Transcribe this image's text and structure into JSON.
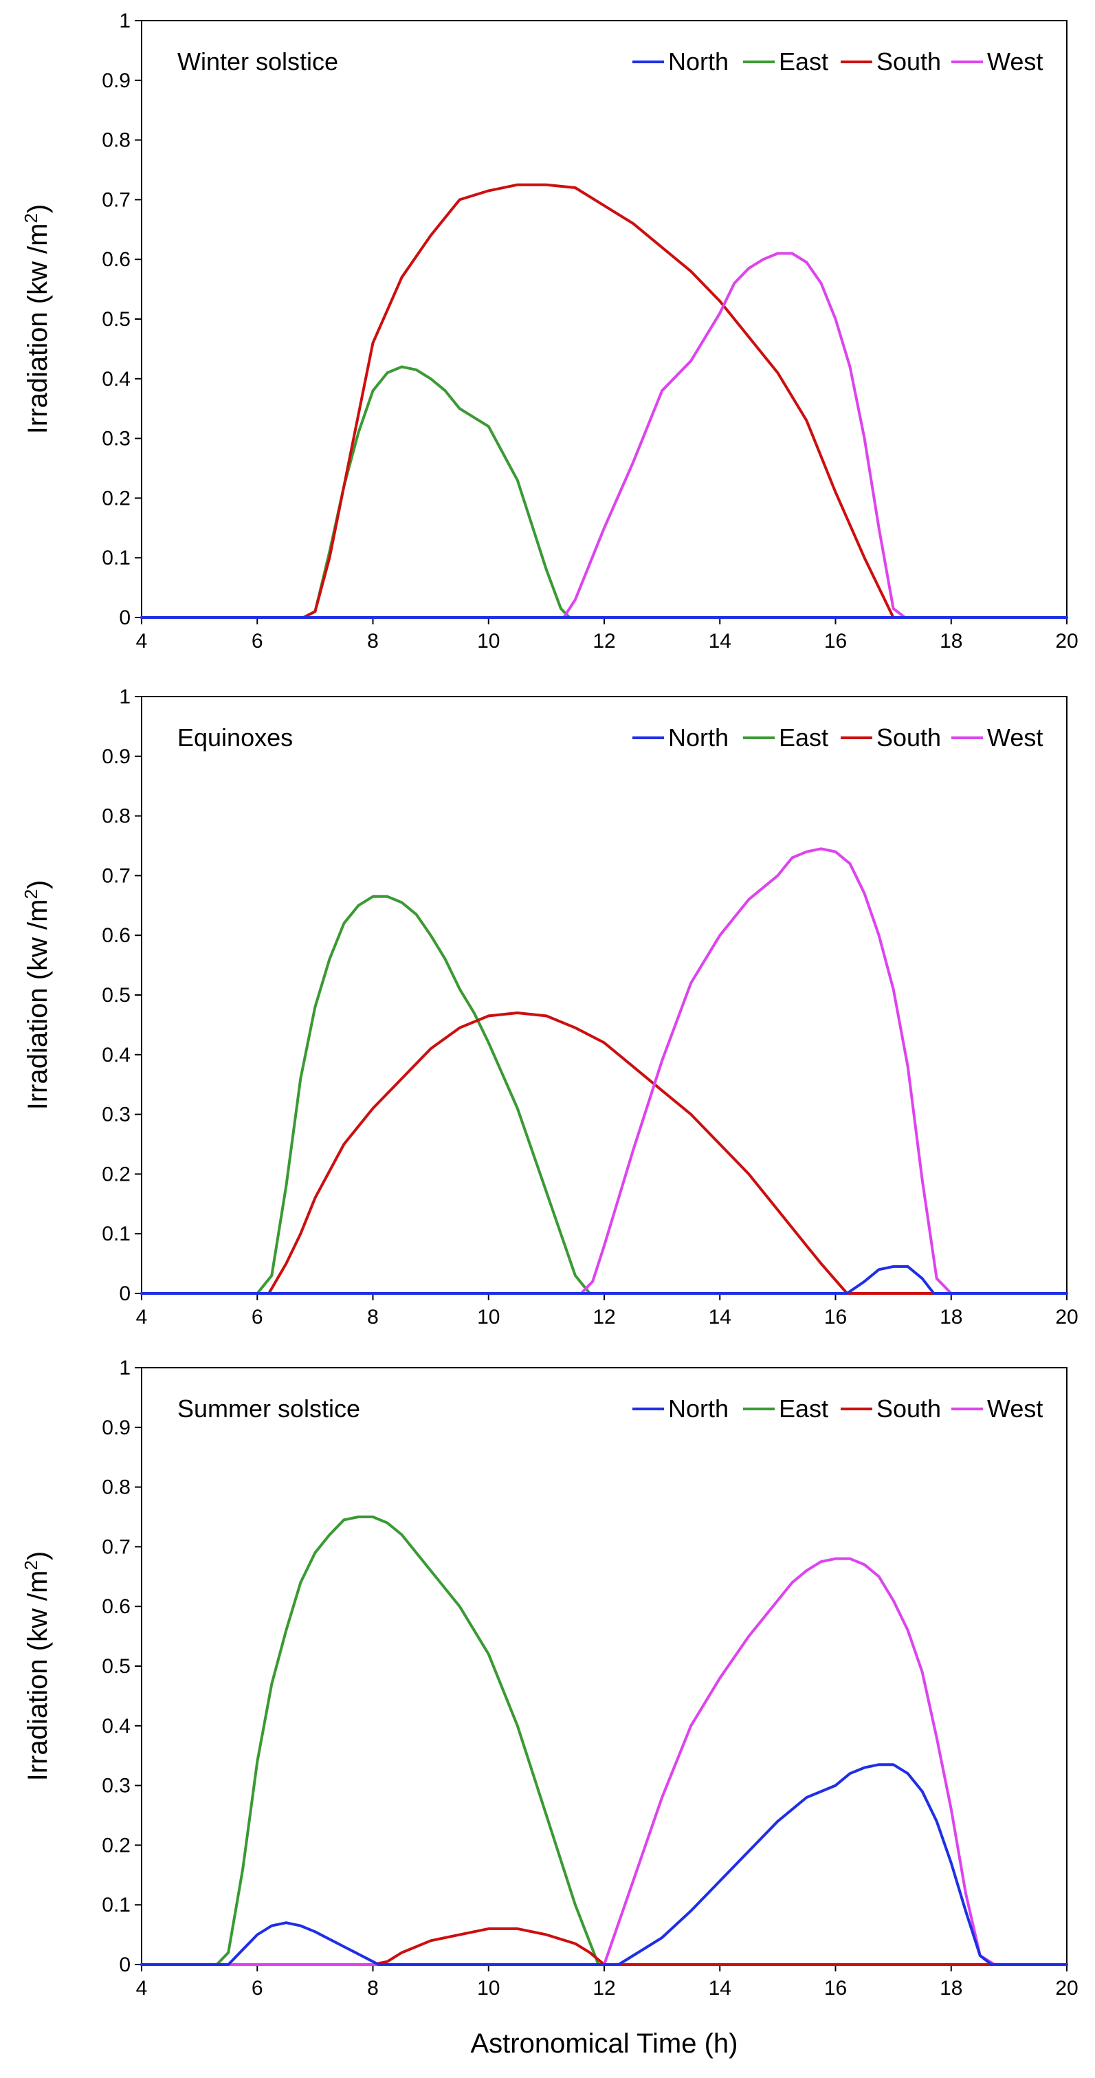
{
  "colors": {
    "North": "#1f2fe6",
    "East": "#3a9a33",
    "South": "#cc0f0f",
    "West": "#dd44ee",
    "axis": "#000000"
  },
  "shared": {
    "xlabel": "Astronomical Time (h)",
    "ylabel_main": "Irradiation (kw /m",
    "ylabel_sup": "2",
    "ylabel_close": ")"
  },
  "chart_data": [
    {
      "type": "line",
      "title": "Winter solstice",
      "xlabel": "Astronomical Time (h)",
      "ylabel": "Irradiation (kw /m2)",
      "xlim": [
        4,
        20
      ],
      "ylim": [
        0,
        1
      ],
      "xticks": [
        "4",
        "6",
        "8",
        "10",
        "12",
        "14",
        "16",
        "18",
        "20"
      ],
      "yticks": [
        "0",
        "0.1",
        "0.2",
        "0.3",
        "0.4",
        "0.5",
        "0.6",
        "0.7",
        "0.8",
        "0.9",
        "1"
      ],
      "legend": [
        "North",
        "East",
        "South",
        "West"
      ],
      "legend_position": "top-right",
      "series": [
        {
          "name": "North",
          "x": [
            4,
            20
          ],
          "y": [
            0,
            0
          ]
        },
        {
          "name": "East",
          "x": [
            4,
            6.8,
            7.0,
            7.25,
            7.5,
            7.75,
            8.0,
            8.25,
            8.5,
            8.75,
            9.0,
            9.25,
            9.5,
            10.0,
            10.5,
            11.0,
            11.25,
            11.4,
            20
          ],
          "y": [
            0,
            0,
            0.01,
            0.11,
            0.22,
            0.31,
            0.38,
            0.41,
            0.42,
            0.415,
            0.4,
            0.38,
            0.35,
            0.32,
            0.23,
            0.08,
            0.015,
            0,
            0
          ]
        },
        {
          "name": "South",
          "x": [
            4,
            6.8,
            7.0,
            7.25,
            7.5,
            8.0,
            8.5,
            9.0,
            9.5,
            10.0,
            10.5,
            11.0,
            11.5,
            12.0,
            12.5,
            13.0,
            13.5,
            14.0,
            14.5,
            15.0,
            15.5,
            16.0,
            16.5,
            16.8,
            17.0,
            20
          ],
          "y": [
            0,
            0,
            0.01,
            0.1,
            0.22,
            0.46,
            0.57,
            0.64,
            0.7,
            0.715,
            0.725,
            0.725,
            0.72,
            0.69,
            0.66,
            0.62,
            0.58,
            0.53,
            0.47,
            0.41,
            0.33,
            0.21,
            0.1,
            0.04,
            0,
            0
          ]
        },
        {
          "name": "West",
          "x": [
            4,
            11.3,
            11.5,
            12.0,
            12.5,
            13.0,
            13.5,
            14.0,
            14.25,
            14.5,
            14.75,
            15.0,
            15.25,
            15.5,
            15.75,
            16.0,
            16.25,
            16.5,
            16.75,
            17.0,
            17.2,
            20
          ],
          "y": [
            0,
            0,
            0.03,
            0.15,
            0.26,
            0.38,
            0.43,
            0.51,
            0.56,
            0.585,
            0.6,
            0.61,
            0.61,
            0.595,
            0.56,
            0.5,
            0.42,
            0.3,
            0.15,
            0.015,
            0,
            0
          ]
        }
      ]
    },
    {
      "type": "line",
      "title": "Equinoxes",
      "xlabel": "Astronomical Time (h)",
      "ylabel": "Irradiation (kw /m2)",
      "xlim": [
        4,
        20
      ],
      "ylim": [
        0,
        1
      ],
      "xticks": [
        "4",
        "6",
        "8",
        "10",
        "12",
        "14",
        "16",
        "18",
        "20"
      ],
      "yticks": [
        "0",
        "0.1",
        "0.2",
        "0.3",
        "0.4",
        "0.5",
        "0.6",
        "0.7",
        "0.8",
        "0.9",
        "1"
      ],
      "legend": [
        "North",
        "East",
        "South",
        "West"
      ],
      "legend_position": "top-right",
      "series": [
        {
          "name": "North",
          "x": [
            4,
            16.2,
            16.5,
            16.75,
            17.0,
            17.25,
            17.5,
            17.7,
            20
          ],
          "y": [
            0,
            0,
            0.02,
            0.04,
            0.045,
            0.045,
            0.025,
            0,
            0
          ]
        },
        {
          "name": "East",
          "x": [
            4,
            6.0,
            6.25,
            6.5,
            6.75,
            7.0,
            7.25,
            7.5,
            7.75,
            8.0,
            8.25,
            8.5,
            8.75,
            9.0,
            9.25,
            9.5,
            9.75,
            10.0,
            10.5,
            11.0,
            11.5,
            11.75,
            20
          ],
          "y": [
            0,
            0,
            0.03,
            0.18,
            0.36,
            0.48,
            0.56,
            0.62,
            0.65,
            0.665,
            0.665,
            0.655,
            0.635,
            0.6,
            0.56,
            0.51,
            0.47,
            0.42,
            0.31,
            0.17,
            0.03,
            0,
            0
          ]
        },
        {
          "name": "South",
          "x": [
            4,
            6.2,
            6.5,
            6.75,
            7.0,
            7.5,
            8.0,
            8.5,
            9.0,
            9.5,
            10.0,
            10.5,
            11.0,
            11.5,
            12.0,
            12.5,
            13.0,
            13.5,
            14.0,
            14.5,
            15.0,
            15.5,
            15.75,
            16.2,
            20
          ],
          "y": [
            0,
            0,
            0.05,
            0.1,
            0.16,
            0.25,
            0.31,
            0.36,
            0.41,
            0.445,
            0.465,
            0.47,
            0.465,
            0.445,
            0.42,
            0.38,
            0.34,
            0.3,
            0.25,
            0.2,
            0.14,
            0.08,
            0.05,
            0,
            0
          ]
        },
        {
          "name": "West",
          "x": [
            4,
            11.6,
            11.8,
            12.0,
            12.5,
            13.0,
            13.5,
            14.0,
            14.5,
            15.0,
            15.25,
            15.5,
            15.75,
            16.0,
            16.25,
            16.5,
            16.75,
            17.0,
            17.25,
            17.5,
            17.75,
            18.0,
            20
          ],
          "y": [
            0,
            0,
            0.02,
            0.08,
            0.24,
            0.39,
            0.52,
            0.6,
            0.66,
            0.7,
            0.73,
            0.74,
            0.745,
            0.74,
            0.72,
            0.67,
            0.6,
            0.51,
            0.38,
            0.19,
            0.025,
            0,
            0
          ]
        }
      ]
    },
    {
      "type": "line",
      "title": "Summer solstice",
      "xlabel": "Astronomical Time (h)",
      "ylabel": "Irradiation (kw /m2)",
      "xlim": [
        4,
        20
      ],
      "ylim": [
        0,
        1
      ],
      "xticks": [
        "4",
        "6",
        "8",
        "10",
        "12",
        "14",
        "16",
        "18",
        "20"
      ],
      "yticks": [
        "0",
        "0.1",
        "0.2",
        "0.3",
        "0.4",
        "0.5",
        "0.6",
        "0.7",
        "0.8",
        "0.9",
        "1"
      ],
      "legend": [
        "North",
        "East",
        "South",
        "West"
      ],
      "legend_position": "top-right",
      "series": [
        {
          "name": "North",
          "x": [
            4,
            5.5,
            5.75,
            6.0,
            6.25,
            6.5,
            6.75,
            7.0,
            7.5,
            8.0,
            8.1,
            12.25,
            12.5,
            13.0,
            13.5,
            14.0,
            14.5,
            15.0,
            15.5,
            16.0,
            16.25,
            16.5,
            16.75,
            17.0,
            17.25,
            17.5,
            17.75,
            18.0,
            18.25,
            18.5,
            18.7,
            20
          ],
          "y": [
            0,
            0,
            0.025,
            0.05,
            0.065,
            0.07,
            0.065,
            0.055,
            0.03,
            0.005,
            0,
            0,
            0.015,
            0.045,
            0.09,
            0.14,
            0.19,
            0.24,
            0.28,
            0.3,
            0.32,
            0.33,
            0.335,
            0.335,
            0.32,
            0.29,
            0.24,
            0.17,
            0.09,
            0.015,
            0,
            0
          ]
        },
        {
          "name": "East",
          "x": [
            4,
            5.3,
            5.5,
            5.75,
            6.0,
            6.25,
            6.5,
            6.75,
            7.0,
            7.25,
            7.5,
            7.75,
            8.0,
            8.25,
            8.5,
            8.75,
            9.0,
            9.5,
            10.0,
            10.5,
            11.0,
            11.5,
            11.9,
            20
          ],
          "y": [
            0,
            0,
            0.02,
            0.16,
            0.34,
            0.47,
            0.56,
            0.64,
            0.69,
            0.72,
            0.745,
            0.75,
            0.75,
            0.74,
            0.72,
            0.69,
            0.66,
            0.6,
            0.52,
            0.4,
            0.25,
            0.1,
            0,
            0
          ]
        },
        {
          "name": "South",
          "x": [
            4,
            8.0,
            8.25,
            8.5,
            8.75,
            9.0,
            9.5,
            10.0,
            10.5,
            11.0,
            11.5,
            11.75,
            12.0,
            20
          ],
          "y": [
            0,
            0,
            0.005,
            0.02,
            0.03,
            0.04,
            0.05,
            0.06,
            0.06,
            0.05,
            0.035,
            0.02,
            0,
            0
          ]
        },
        {
          "name": "West",
          "x": [
            4,
            12.0,
            12.5,
            13.0,
            13.5,
            14.0,
            14.5,
            15.0,
            15.25,
            15.5,
            15.75,
            16.0,
            16.25,
            16.5,
            16.75,
            17.0,
            17.25,
            17.5,
            17.75,
            18.0,
            18.25,
            18.5,
            18.75,
            20
          ],
          "y": [
            0,
            0,
            0.14,
            0.28,
            0.4,
            0.48,
            0.55,
            0.61,
            0.64,
            0.66,
            0.675,
            0.68,
            0.68,
            0.67,
            0.65,
            0.61,
            0.56,
            0.49,
            0.38,
            0.26,
            0.12,
            0.015,
            0,
            0
          ]
        }
      ]
    }
  ]
}
